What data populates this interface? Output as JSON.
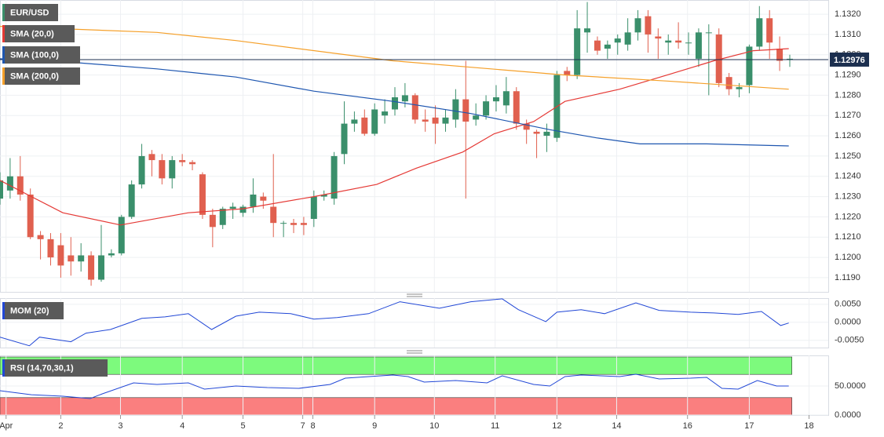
{
  "chart_data": [
    {
      "type": "candlestick",
      "title": "EUR/USD",
      "up_color": "#3a8f6b",
      "down_color": "#e0604f",
      "grid": true,
      "x": [
        0,
        1,
        2,
        3,
        4,
        5,
        6,
        7,
        8,
        9,
        10,
        11,
        12,
        13,
        14,
        15,
        16,
        17,
        18,
        19,
        20,
        21,
        22,
        23,
        24,
        25,
        26,
        27,
        28,
        29,
        30,
        31,
        32,
        33,
        34,
        35,
        36,
        37,
        38,
        39,
        40,
        41,
        42,
        43,
        44,
        45,
        46,
        47,
        48,
        49,
        50,
        51,
        52,
        53,
        54,
        55,
        56,
        57,
        58,
        59,
        60,
        61,
        62,
        63,
        64,
        65,
        66,
        67,
        68,
        69,
        70,
        71,
        72,
        73,
        74,
        75,
        76,
        77,
        78
      ],
      "open": [
        1.1229,
        1.1233,
        1.124,
        1.1231,
        1.1211,
        1.1209,
        1.1206,
        1.1201,
        1.1198,
        1.1201,
        1.1189,
        1.1201,
        1.1202,
        1.122,
        1.1236,
        1.1251,
        1.1248,
        1.1239,
        1.1248,
        1.1247,
        1.1241,
        1.1221,
        1.1216,
        1.1224,
        1.1222,
        1.1225,
        1.123,
        1.1225,
        1.1217,
        1.1217,
        1.1217,
        1.1219,
        1.123,
        1.1229,
        1.1251,
        1.1266,
        1.1269,
        1.1261,
        1.127,
        1.1273,
        1.1277,
        1.128,
        1.1268,
        1.1269,
        1.1266,
        1.1268,
        1.1278,
        1.1268,
        1.127,
        1.1277,
        1.1275,
        1.1282,
        1.1266,
        1.1262,
        1.126,
        1.1259,
        1.1292,
        1.129,
        1.1311,
        1.1307,
        1.1303,
        1.1306,
        1.1305,
        1.1311,
        1.1319,
        1.1309,
        1.1306,
        1.1307,
        1.1306,
        1.1298,
        1.1311,
        1.131,
        1.1289,
        1.1283,
        1.1285,
        1.1304,
        1.1318,
        1.1303,
        1.1298
      ],
      "high": [
        1.1242,
        1.1249,
        1.125,
        1.1234,
        1.1213,
        1.1212,
        1.1212,
        1.121,
        1.1207,
        1.1203,
        1.1216,
        1.1204,
        1.1221,
        1.1238,
        1.1256,
        1.1253,
        1.1251,
        1.125,
        1.1251,
        1.1248,
        1.1242,
        1.1224,
        1.1225,
        1.1227,
        1.1226,
        1.1239,
        1.1232,
        1.1251,
        1.1218,
        1.1219,
        1.122,
        1.1233,
        1.1233,
        1.1252,
        1.1277,
        1.1272,
        1.1273,
        1.1276,
        1.1278,
        1.1284,
        1.1286,
        1.1281,
        1.1273,
        1.1275,
        1.1273,
        1.1283,
        1.1297,
        1.1276,
        1.128,
        1.1285,
        1.1289,
        1.1284,
        1.1268,
        1.1263,
        1.1266,
        1.1292,
        1.1294,
        1.1322,
        1.1326,
        1.1309,
        1.1307,
        1.131,
        1.1318,
        1.1322,
        1.1322,
        1.1313,
        1.131,
        1.1316,
        1.1311,
        1.1313,
        1.1315,
        1.1313,
        1.1291,
        1.1286,
        1.1305,
        1.1324,
        1.1322,
        1.1309,
        1.13
      ],
      "low": [
        1.1226,
        1.1229,
        1.1228,
        1.1209,
        1.1199,
        1.1196,
        1.119,
        1.1191,
        1.1193,
        1.1186,
        1.1188,
        1.12,
        1.1201,
        1.1219,
        1.1234,
        1.124,
        1.1236,
        1.1234,
        1.1245,
        1.1243,
        1.1219,
        1.1205,
        1.1214,
        1.1219,
        1.122,
        1.1222,
        1.1224,
        1.121,
        1.121,
        1.1212,
        1.1211,
        1.1215,
        1.1228,
        1.1226,
        1.1246,
        1.1262,
        1.126,
        1.126,
        1.1266,
        1.127,
        1.1274,
        1.1266,
        1.1262,
        1.1256,
        1.1262,
        1.1264,
        1.1229,
        1.1265,
        1.1268,
        1.1272,
        1.1271,
        1.1263,
        1.1256,
        1.1249,
        1.1252,
        1.1257,
        1.1287,
        1.1288,
        1.1301,
        1.13,
        1.1298,
        1.13,
        1.1302,
        1.1307,
        1.1301,
        1.1298,
        1.13,
        1.1303,
        1.13,
        1.1294,
        1.128,
        1.1284,
        1.128,
        1.1279,
        1.1281,
        1.1302,
        1.1298,
        1.1292,
        1.1294
      ],
      "close": [
        1.1238,
        1.124,
        1.1231,
        1.121,
        1.1209,
        1.12,
        1.1196,
        1.1198,
        1.1201,
        1.1189,
        1.1201,
        1.1202,
        1.122,
        1.1236,
        1.125,
        1.1248,
        1.1239,
        1.1248,
        1.1247,
        1.1246,
        1.1221,
        1.1215,
        1.1224,
        1.1225,
        1.1225,
        1.1231,
        1.1228,
        1.1217,
        1.1217,
        1.1216,
        1.1216,
        1.123,
        1.1231,
        1.125,
        1.1266,
        1.1268,
        1.1261,
        1.1273,
        1.1272,
        1.1279,
        1.128,
        1.1268,
        1.1267,
        1.1266,
        1.1269,
        1.1278,
        1.1267,
        1.127,
        1.1277,
        1.1279,
        1.1282,
        1.1266,
        1.1263,
        1.1261,
        1.1262,
        1.129,
        1.129,
        1.1313,
        1.1313,
        1.1302,
        1.1305,
        1.1308,
        1.1311,
        1.1318,
        1.131,
        1.1308,
        1.1307,
        1.1306,
        1.1306,
        1.1311,
        1.1311,
        1.1286,
        1.1283,
        1.1284,
        1.1304,
        1.1318,
        1.1306,
        1.1297,
        1.1298
      ],
      "last_price": 1.12976,
      "last_price_color": "#1c2f4f",
      "overlays": [
        {
          "name": "SMA (20,0)",
          "color": "#e53935",
          "x": [
            0,
            3.1,
            6.2,
            11.9,
            18.6,
            24,
            31,
            37.2,
            41.1,
            45.7,
            48.8,
            52.7,
            55.8,
            61.2,
            65.9,
            70.5,
            74.4,
            77.9
          ],
          "values": [
            1.1238,
            1.123,
            1.1222,
            1.1216,
            1.1222,
            1.1224,
            1.123,
            1.1236,
            1.1244,
            1.1252,
            1.1261,
            1.1267,
            1.1277,
            1.1283,
            1.129,
            1.1297,
            1.1302,
            1.1303
          ]
        },
        {
          "name": "SMA (100,0)",
          "color": "#1e56b0",
          "x": [
            0,
            7.8,
            15.5,
            23.3,
            31,
            38.8,
            46.5,
            54.3,
            58.9,
            63.2,
            69.8,
            77.9
          ],
          "values": [
            1.1298,
            1.1296,
            1.1293,
            1.1289,
            1.1282,
            1.1277,
            1.1271,
            1.1263,
            1.1259,
            1.1256,
            1.1256,
            1.1255
          ]
        },
        {
          "name": "SMA (200,0)",
          "color": "#f5a02a",
          "x": [
            0,
            15.5,
            23.3,
            38.8,
            55.8,
            65.9,
            77.9
          ],
          "values": [
            1.1314,
            1.1311,
            1.1307,
            1.1297,
            1.129,
            1.1287,
            1.1283
          ]
        }
      ],
      "ylim": [
        1.1183,
        1.1327
      ],
      "yticks": [
        {
          "value": 1.119,
          "label": "1.1190"
        },
        {
          "value": 1.12,
          "label": "1.1200"
        },
        {
          "value": 1.121,
          "label": "1.1210"
        },
        {
          "value": 1.122,
          "label": "1.1220"
        },
        {
          "value": 1.123,
          "label": "1.1230"
        },
        {
          "value": 1.124,
          "label": "1.1240"
        },
        {
          "value": 1.125,
          "label": "1.1250"
        },
        {
          "value": 1.126,
          "label": "1.1260"
        },
        {
          "value": 1.127,
          "label": "1.1270"
        },
        {
          "value": 1.128,
          "label": "1.1280"
        },
        {
          "value": 1.129,
          "label": "1.1290"
        },
        {
          "value": 1.13,
          "label": "1.1300"
        },
        {
          "value": 1.131,
          "label": "1.1310"
        },
        {
          "value": 1.132,
          "label": "1.1320"
        }
      ]
    },
    {
      "type": "line",
      "title": "MOM (20)",
      "grid": true,
      "series": [
        {
          "color": "#2147d6",
          "x": [
            0,
            2.9,
            3.9,
            7,
            8.5,
            10.9,
            14,
            16.3,
            18.6,
            20.9,
            23.3,
            25.6,
            28.7,
            31,
            33.3,
            36.4,
            39.5,
            43.4,
            46.5,
            49.6,
            51.2,
            53.9,
            55,
            57.4,
            59.7,
            62.8,
            65.1,
            68.2,
            70.5,
            72.9,
            75.2,
            77.1,
            77.9
          ],
          "values": [
            -0.0041,
            -0.0065,
            -0.0041,
            -0.0054,
            -0.003,
            -0.002,
            0.0011,
            0.0015,
            0.0024,
            -0.002,
            0.0017,
            0.0028,
            0.0024,
            0.0009,
            0.0013,
            0.0024,
            0.0057,
            0.0039,
            0.0057,
            0.0065,
            0.0035,
            0.0002,
            0.0028,
            0.0035,
            0.0024,
            0.0054,
            0.0033,
            0.0028,
            0.0026,
            0.0022,
            0.003,
            -0.0009,
            -0.0002
          ]
        }
      ],
      "ylim": [
        -0.007,
        0.0067
      ],
      "yticks": [
        {
          "value": -0.005,
          "label": "-0.0050"
        },
        {
          "value": 0,
          "label": "0.0000"
        },
        {
          "value": 0.005,
          "label": "0.0050"
        }
      ]
    },
    {
      "type": "line",
      "title": "RSI (14,70,30,1)",
      "grid": true,
      "bands": [
        {
          "from": 70,
          "to": 100,
          "color": "#7dfa7d"
        },
        {
          "from": 0,
          "to": 30,
          "color": "#fa7f7f"
        }
      ],
      "series": [
        {
          "color": "#2147d6",
          "x": [
            0,
            3.1,
            6.2,
            8.9,
            10.1,
            13.2,
            15.5,
            18.6,
            20.2,
            23.3,
            26.4,
            29.5,
            32.6,
            34.1,
            38.8,
            40.3,
            41.9,
            45,
            48.1,
            49.6,
            52.7,
            54.3,
            55.8,
            57.4,
            61.2,
            62.8,
            65.1,
            68.2,
            69.8,
            71.3,
            72.9,
            74.8,
            76.7,
            77.9
          ],
          "values": [
            41.9,
            35,
            32.4,
            28.4,
            36.5,
            55.4,
            52.7,
            55.4,
            44.6,
            50,
            47.3,
            45.9,
            52.7,
            63.5,
            68.9,
            66.2,
            56.8,
            59.5,
            55.4,
            67.6,
            52.7,
            50,
            66.2,
            68.9,
            66.2,
            70.3,
            62.2,
            63.5,
            64.9,
            45.9,
            44.6,
            59.5,
            50,
            50
          ]
        }
      ],
      "ylim": [
        0,
        102.7
      ],
      "yticks": [
        {
          "value": 0,
          "label": "0.0000"
        },
        {
          "value": 50,
          "label": "50.0000"
        }
      ],
      "xlim": [
        0,
        81.8
      ],
      "xticks": [
        {
          "value": 0.6,
          "label": "Apr"
        },
        {
          "value": 6,
          "label": "2"
        },
        {
          "value": 11.9,
          "label": "3"
        },
        {
          "value": 18,
          "label": "4"
        },
        {
          "value": 24,
          "label": "5"
        },
        {
          "value": 29.9,
          "label": "7"
        },
        {
          "value": 30.9,
          "label": "8"
        },
        {
          "value": 37,
          "label": "9"
        },
        {
          "value": 42.9,
          "label": "10"
        },
        {
          "value": 48.9,
          "label": "11"
        },
        {
          "value": 55,
          "label": "12"
        },
        {
          "value": 60.9,
          "label": "14"
        },
        {
          "value": 67.9,
          "label": "16"
        },
        {
          "value": 74,
          "label": "17"
        },
        {
          "value": 79.9,
          "label": "18"
        }
      ]
    }
  ]
}
